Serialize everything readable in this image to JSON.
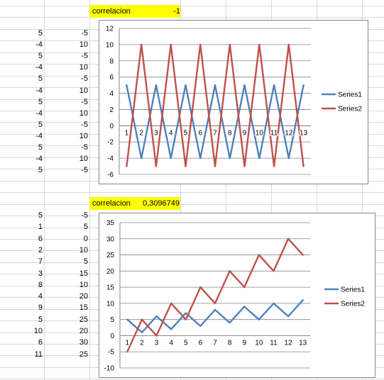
{
  "colors": {
    "grid_line": "#d9d9d9",
    "series1": "#4f81bd",
    "series2": "#c0504d",
    "highlight": "#ffff00"
  },
  "sheet": {
    "block1": {
      "label": "correlacion",
      "value": "-1",
      "colA": [
        "5",
        "-4",
        "5",
        "-4",
        "5",
        "-4",
        "5",
        "-4",
        "5",
        "-4",
        "5",
        "-4",
        "5"
      ],
      "colB": [
        "-5",
        "10",
        "-5",
        "10",
        "-5",
        "10",
        "-5",
        "10",
        "-5",
        "10",
        "-5",
        "10",
        "-5"
      ]
    },
    "block2": {
      "label": "correlacion",
      "value": "0,3096749",
      "colA": [
        "5",
        "1",
        "6",
        "2",
        "7",
        "3",
        "8",
        "4",
        "9",
        "5",
        "10",
        "6",
        "11"
      ],
      "colB": [
        "-5",
        "5",
        "0",
        "10",
        "5",
        "15",
        "10",
        "20",
        "15",
        "25",
        "20",
        "30",
        "25"
      ]
    }
  },
  "chart_data": [
    {
      "type": "line",
      "x": [
        1,
        2,
        3,
        4,
        5,
        6,
        7,
        8,
        9,
        10,
        11,
        12,
        13
      ],
      "categories": [
        "1",
        "2",
        "3",
        "4",
        "5",
        "6",
        "7",
        "8",
        "9",
        "10",
        "11",
        "12",
        "13"
      ],
      "series": [
        {
          "name": "Series1",
          "values": [
            5,
            -4,
            5,
            -4,
            5,
            -4,
            5,
            -4,
            5,
            -4,
            5,
            -4,
            5
          ]
        },
        {
          "name": "Series2",
          "values": [
            -5,
            10,
            -5,
            10,
            -5,
            10,
            -5,
            10,
            -5,
            10,
            -5,
            10,
            -5
          ]
        }
      ],
      "ylim": [
        -6,
        12
      ],
      "yticks": [
        "12",
        "10",
        "8",
        "6",
        "4",
        "2",
        "0",
        "-2",
        "-4",
        "-6"
      ],
      "grid": true,
      "legend": "right"
    },
    {
      "type": "line",
      "x": [
        1,
        2,
        3,
        4,
        5,
        6,
        7,
        8,
        9,
        10,
        11,
        12,
        13
      ],
      "categories": [
        "1",
        "2",
        "3",
        "4",
        "5",
        "6",
        "7",
        "8",
        "9",
        "10",
        "11",
        "12",
        "13"
      ],
      "series": [
        {
          "name": "Series1",
          "values": [
            5,
            1,
            6,
            2,
            7,
            3,
            8,
            4,
            9,
            5,
            10,
            6,
            11
          ]
        },
        {
          "name": "Series2",
          "values": [
            -5,
            5,
            0,
            10,
            5,
            15,
            10,
            20,
            15,
            25,
            20,
            30,
            25
          ]
        }
      ],
      "ylim": [
        -10,
        35
      ],
      "yticks": [
        "35",
        "30",
        "25",
        "20",
        "15",
        "10",
        "5",
        "0",
        "-5",
        "-10"
      ],
      "grid": true,
      "legend": "right"
    }
  ]
}
